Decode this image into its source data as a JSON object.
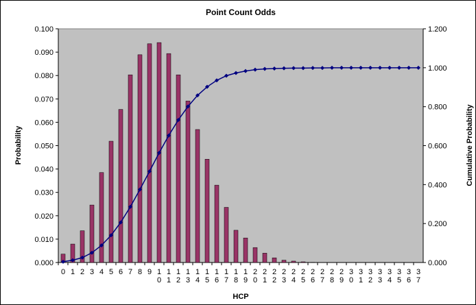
{
  "chart_data": {
    "type": "bar",
    "title": "Point Count Odds",
    "y_label": "Probability",
    "y2_label": "Cumulative Probability",
    "x_label": "HCP",
    "categories": [
      "0",
      "1",
      "2",
      "3",
      "4",
      "5",
      "6",
      "7",
      "8",
      "9",
      "10",
      "11",
      "12",
      "13",
      "14",
      "15",
      "16",
      "17",
      "18",
      "19",
      "20",
      "21",
      "22",
      "23",
      "24",
      "25",
      "26",
      "27",
      "28",
      "29",
      "30",
      "31",
      "32",
      "33",
      "34",
      "35",
      "36",
      "37"
    ],
    "series": [
      {
        "type": "bar",
        "color": "#993366",
        "values": [
          0.0036,
          0.0079,
          0.0136,
          0.0246,
          0.0385,
          0.0519,
          0.0655,
          0.0803,
          0.0889,
          0.0936,
          0.0941,
          0.0894,
          0.0803,
          0.0691,
          0.0569,
          0.0442,
          0.0331,
          0.0236,
          0.0138,
          0.0105,
          0.0064,
          0.004,
          0.002,
          0.001,
          0.0006,
          0.0003,
          0.0001,
          0,
          0,
          0,
          0,
          0,
          0,
          0,
          0,
          0,
          0,
          0
        ]
      },
      {
        "type": "line",
        "axis": "y2",
        "color": "#000080",
        "values": [
          0.004,
          0.012,
          0.025,
          0.05,
          0.088,
          0.14,
          0.206,
          0.286,
          0.375,
          0.468,
          0.563,
          0.652,
          0.732,
          0.801,
          0.858,
          0.902,
          0.935,
          0.959,
          0.973,
          0.983,
          0.99,
          0.994,
          0.996,
          0.997,
          0.998,
          0.998,
          0.999,
          0.999,
          1,
          1,
          1,
          1,
          1,
          1,
          1,
          1,
          1,
          1
        ]
      }
    ],
    "ylim": [
      0,
      0.1
    ],
    "yticks": [
      {
        "value": 0,
        "label": "0.000"
      },
      {
        "value": 0.01,
        "label": "0.010"
      },
      {
        "value": 0.02,
        "label": "0.020"
      },
      {
        "value": 0.03,
        "label": "0.030"
      },
      {
        "value": 0.04,
        "label": "0.040"
      },
      {
        "value": 0.05,
        "label": "0.050"
      },
      {
        "value": 0.06,
        "label": "0.060"
      },
      {
        "value": 0.07,
        "label": "0.070"
      },
      {
        "value": 0.08,
        "label": "0.080"
      },
      {
        "value": 0.09,
        "label": "0.090"
      },
      {
        "value": 0.1,
        "label": "0.100"
      }
    ],
    "y2lim": [
      0,
      1.2
    ],
    "y2ticks": [
      {
        "value": 0,
        "label": "0.000"
      },
      {
        "value": 0.2,
        "label": "0.200"
      },
      {
        "value": 0.4,
        "label": "0.400"
      },
      {
        "value": 0.6,
        "label": "0.600"
      },
      {
        "value": 0.8,
        "label": "0.800"
      },
      {
        "value": 1,
        "label": "1.000"
      },
      {
        "value": 1.2,
        "label": "1.200"
      }
    ],
    "plot_background": "#c0c0c0",
    "grid": false
  }
}
